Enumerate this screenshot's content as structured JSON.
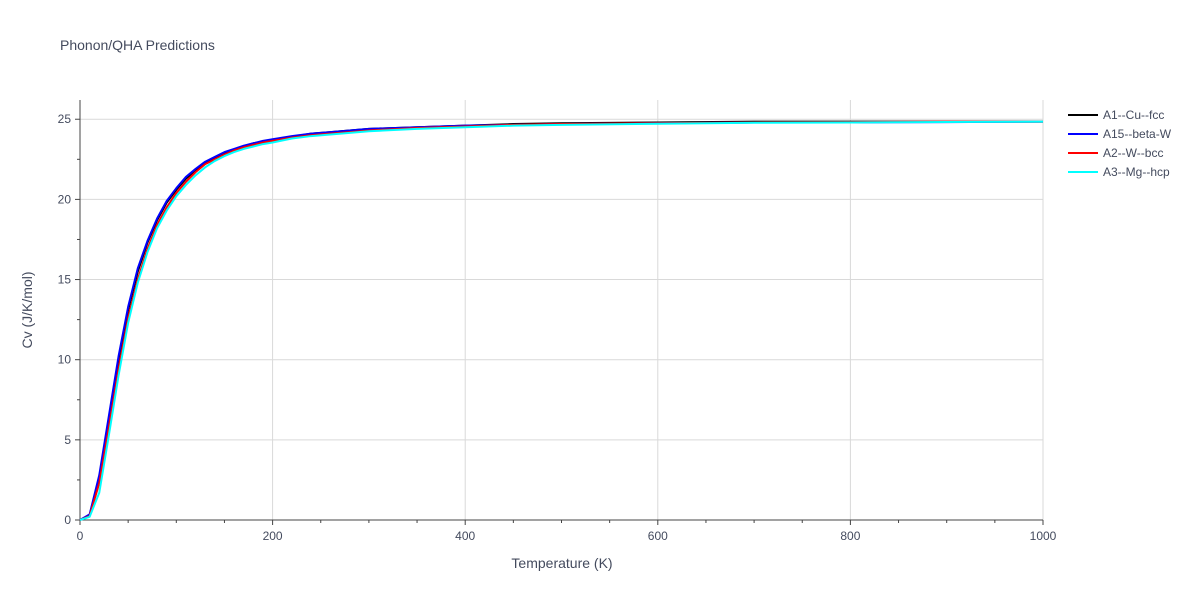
{
  "chart_data": {
    "type": "line",
    "title": "Phonon/QHA Predictions",
    "xlabel": "Temperature (K)",
    "ylabel": "Cv (J/K/mol)",
    "xlim": [
      0,
      1000
    ],
    "ylim": [
      0,
      26.2
    ],
    "x_ticks": [
      0,
      200,
      400,
      600,
      800,
      1000
    ],
    "y_ticks": [
      0,
      5,
      10,
      15,
      20,
      25
    ],
    "grid": true,
    "legend_position": "right",
    "series": [
      {
        "name": "A1--Cu--fcc",
        "color": "#000000",
        "x": [
          0,
          10,
          20,
          30,
          40,
          50,
          60,
          70,
          80,
          90,
          100,
          110,
          120,
          130,
          140,
          150,
          160,
          170,
          180,
          190,
          200,
          220,
          240,
          260,
          280,
          300,
          350,
          400,
          450,
          500,
          600,
          700,
          800,
          900,
          1000
        ],
        "y": [
          0,
          0.3,
          2.6,
          6.3,
          10.0,
          13.1,
          15.5,
          17.3,
          18.7,
          19.8,
          20.6,
          21.3,
          21.8,
          22.3,
          22.6,
          22.9,
          23.1,
          23.3,
          23.5,
          23.6,
          23.7,
          23.9,
          24.1,
          24.2,
          24.3,
          24.4,
          24.5,
          24.6,
          24.7,
          24.75,
          24.8,
          24.85,
          24.85,
          24.85,
          24.85
        ]
      },
      {
        "name": "A15--beta-W",
        "color": "#0000ff",
        "x": [
          0,
          10,
          20,
          30,
          40,
          50,
          60,
          70,
          80,
          90,
          100,
          110,
          120,
          130,
          140,
          150,
          160,
          170,
          180,
          190,
          200,
          220,
          240,
          260,
          280,
          300,
          350,
          400,
          450,
          500,
          600,
          700,
          800,
          900,
          1000
        ],
        "y": [
          0,
          0.35,
          2.8,
          6.5,
          10.2,
          13.3,
          15.7,
          17.4,
          18.8,
          19.9,
          20.7,
          21.4,
          21.9,
          22.35,
          22.65,
          22.95,
          23.15,
          23.35,
          23.5,
          23.65,
          23.75,
          23.95,
          24.1,
          24.2,
          24.3,
          24.4,
          24.5,
          24.6,
          24.65,
          24.7,
          24.75,
          24.8,
          24.8,
          24.82,
          24.85
        ]
      },
      {
        "name": "A2--W--bcc",
        "color": "#ff0000",
        "x": [
          0,
          10,
          20,
          30,
          40,
          50,
          60,
          70,
          80,
          90,
          100,
          110,
          120,
          130,
          140,
          150,
          160,
          170,
          180,
          190,
          200,
          220,
          240,
          260,
          280,
          300,
          350,
          400,
          450,
          500,
          600,
          700,
          800,
          900,
          1000
        ],
        "y": [
          0,
          0.25,
          2.3,
          5.8,
          9.4,
          12.6,
          15.0,
          16.9,
          18.4,
          19.5,
          20.4,
          21.1,
          21.7,
          22.2,
          22.5,
          22.8,
          23.05,
          23.25,
          23.4,
          23.55,
          23.65,
          23.85,
          24.0,
          24.1,
          24.2,
          24.3,
          24.45,
          24.55,
          24.65,
          24.7,
          24.75,
          24.8,
          24.82,
          24.85,
          24.85
        ]
      },
      {
        "name": "A3--Mg--hcp",
        "color": "#00ffff",
        "x": [
          0,
          10,
          20,
          30,
          40,
          50,
          60,
          70,
          80,
          90,
          100,
          110,
          120,
          130,
          140,
          150,
          160,
          170,
          180,
          190,
          200,
          220,
          240,
          260,
          280,
          300,
          350,
          400,
          450,
          500,
          600,
          700,
          800,
          900,
          1000
        ],
        "y": [
          0,
          0.2,
          1.7,
          5.3,
          9.0,
          12.3,
          14.8,
          16.7,
          18.2,
          19.3,
          20.2,
          20.9,
          21.5,
          22.0,
          22.4,
          22.7,
          22.95,
          23.15,
          23.3,
          23.45,
          23.55,
          23.8,
          23.95,
          24.05,
          24.15,
          24.25,
          24.4,
          24.5,
          24.6,
          24.65,
          24.72,
          24.78,
          24.8,
          24.83,
          24.85
        ]
      }
    ]
  }
}
